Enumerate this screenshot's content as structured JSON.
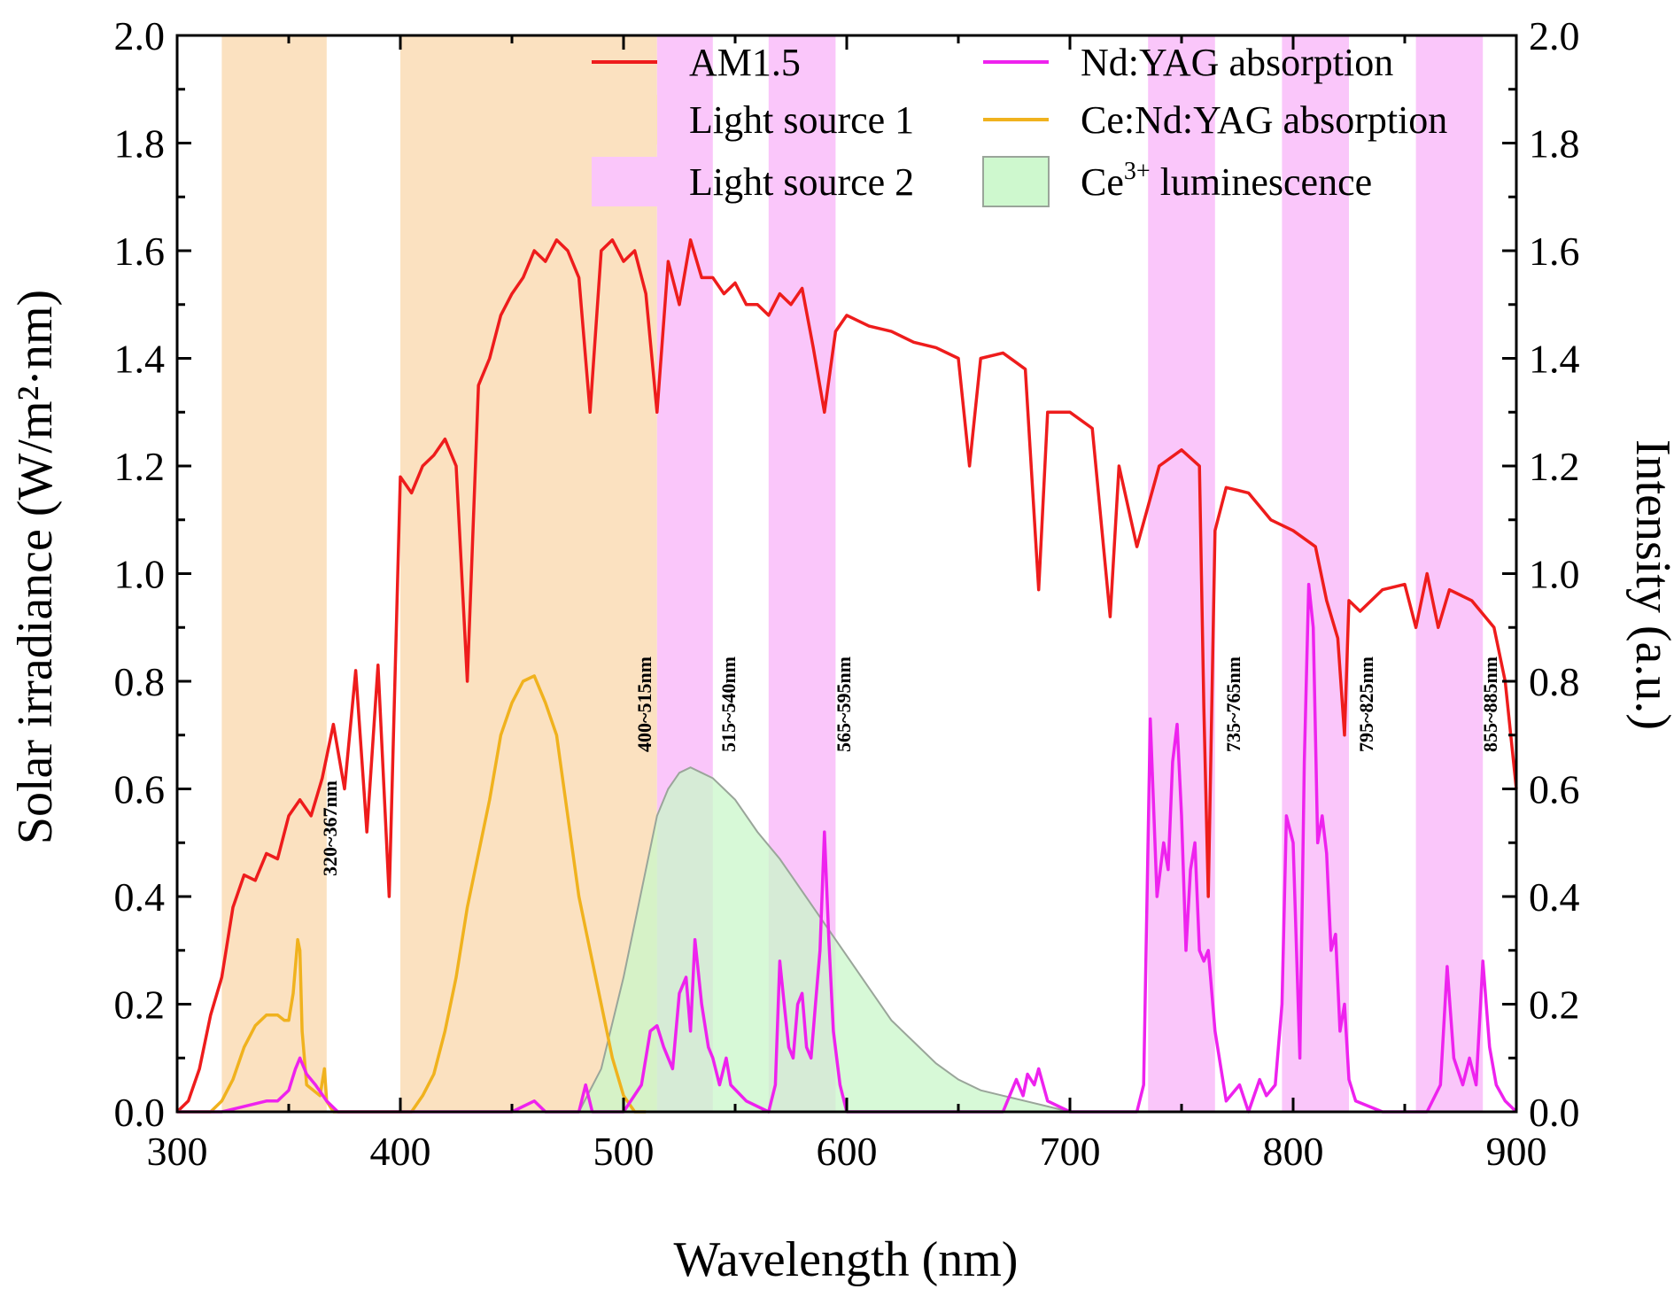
{
  "chart_data": {
    "type": "line",
    "title": "",
    "xlabel": "Wavelength (nm)",
    "ylabel_left": "Solar irradiance (W/m²·nm)",
    "ylabel_right": "Intensity (a.u.)",
    "xlim": [
      300,
      900
    ],
    "ylim_left": [
      0,
      2.0
    ],
    "ylim_right": [
      0,
      2.0
    ],
    "x_ticks": [
      "300",
      "400",
      "500",
      "600",
      "700",
      "800",
      "900"
    ],
    "y_ticks": [
      "0.0",
      "0.2",
      "0.4",
      "0.6",
      "0.8",
      "1.0",
      "1.2",
      "1.4",
      "1.6",
      "1.8",
      "2.0"
    ],
    "grid": false,
    "legend_position": "top",
    "legend": [
      {
        "label": "AM1.5",
        "kind": "line",
        "color": "#ee1c1c"
      },
      {
        "label": "Nd:YAG absorption",
        "kind": "line",
        "color": "#ee22ee"
      },
      {
        "label": "Light source 1",
        "kind": "patch",
        "color": "#fbe1c0"
      },
      {
        "label": "Ce:Nd:YAG absorption",
        "kind": "line",
        "color": "#f0b21e"
      },
      {
        "label": "Light source 2",
        "kind": "patch",
        "color": "#fac6fa"
      },
      {
        "label": "Ce",
        "superscript": "3+",
        "suffix": " luminescence",
        "kind": "patch",
        "color": "#c9f7c9"
      }
    ],
    "bands": [
      {
        "label": "320~367nm",
        "from": 320,
        "to": 367,
        "source": "Light source 1"
      },
      {
        "label": "400~515nm",
        "from": 400,
        "to": 515,
        "source": "Light source 1"
      },
      {
        "label": "515~540nm",
        "from": 515,
        "to": 540,
        "source": "Light source 2"
      },
      {
        "label": "565~595nm",
        "from": 565,
        "to": 595,
        "source": "Light source 2"
      },
      {
        "label": "735~765nm",
        "from": 735,
        "to": 765,
        "source": "Light source 2"
      },
      {
        "label": "795~825nm",
        "from": 795,
        "to": 825,
        "source": "Light source 2"
      },
      {
        "label": "855~885nm",
        "from": 855,
        "to": 885,
        "source": "Light source 2"
      }
    ],
    "series": [
      {
        "name": "AM1.5",
        "color": "#ee1c1c",
        "x": [
          300,
          305,
          310,
          315,
          320,
          325,
          330,
          335,
          340,
          345,
          350,
          355,
          360,
          365,
          370,
          375,
          380,
          385,
          390,
          395,
          400,
          405,
          410,
          415,
          420,
          425,
          430,
          435,
          440,
          445,
          450,
          455,
          460,
          465,
          470,
          475,
          480,
          485,
          490,
          495,
          500,
          505,
          510,
          515,
          520,
          525,
          530,
          535,
          540,
          545,
          550,
          555,
          560,
          565,
          570,
          575,
          580,
          585,
          590,
          595,
          600,
          610,
          620,
          630,
          640,
          650,
          655,
          660,
          670,
          680,
          686,
          690,
          700,
          710,
          718,
          722,
          730,
          740,
          750,
          758,
          760,
          762,
          765,
          770,
          780,
          790,
          800,
          810,
          815,
          820,
          823,
          825,
          830,
          840,
          850,
          855,
          860,
          865,
          870,
          880,
          890,
          895,
          900
        ],
        "y": [
          0.0,
          0.02,
          0.08,
          0.18,
          0.25,
          0.38,
          0.44,
          0.43,
          0.48,
          0.47,
          0.55,
          0.58,
          0.55,
          0.62,
          0.72,
          0.6,
          0.82,
          0.52,
          0.83,
          0.4,
          1.18,
          1.15,
          1.2,
          1.22,
          1.25,
          1.2,
          0.8,
          1.35,
          1.4,
          1.48,
          1.52,
          1.55,
          1.6,
          1.58,
          1.62,
          1.6,
          1.55,
          1.3,
          1.6,
          1.62,
          1.58,
          1.6,
          1.52,
          1.3,
          1.58,
          1.5,
          1.62,
          1.55,
          1.55,
          1.52,
          1.54,
          1.5,
          1.5,
          1.48,
          1.52,
          1.5,
          1.53,
          1.42,
          1.3,
          1.45,
          1.48,
          1.46,
          1.45,
          1.43,
          1.42,
          1.4,
          1.2,
          1.4,
          1.41,
          1.38,
          0.97,
          1.3,
          1.3,
          1.27,
          0.92,
          1.2,
          1.05,
          1.2,
          1.23,
          1.2,
          0.75,
          0.4,
          1.08,
          1.16,
          1.15,
          1.1,
          1.08,
          1.05,
          0.95,
          0.88,
          0.7,
          0.95,
          0.93,
          0.97,
          0.98,
          0.9,
          1.0,
          0.9,
          0.97,
          0.95,
          0.9,
          0.8,
          0.6
        ]
      },
      {
        "name": "Nd:YAG absorption",
        "color": "#ee22ee",
        "x": [
          300,
          320,
          330,
          340,
          345,
          350,
          353,
          355,
          358,
          362,
          367,
          372,
          380,
          400,
          440,
          450,
          460,
          465,
          480,
          483,
          486,
          500,
          508,
          512,
          515,
          518,
          520,
          522,
          525,
          528,
          530,
          532,
          535,
          538,
          540,
          543,
          546,
          548,
          555,
          565,
          568,
          570,
          572,
          574,
          576,
          578,
          580,
          582,
          584,
          586,
          588,
          590,
          592,
          594,
          597,
          600,
          610,
          620,
          640,
          660,
          670,
          676,
          679,
          681,
          684,
          686,
          690,
          700,
          720,
          730,
          733,
          736,
          739,
          742,
          744,
          746,
          748,
          750,
          752,
          754,
          756,
          758,
          760,
          762,
          765,
          770,
          776,
          780,
          785,
          788,
          792,
          795,
          797,
          800,
          803,
          805,
          807,
          809,
          811,
          813,
          815,
          817,
          819,
          821,
          823,
          825,
          828,
          840,
          855,
          860,
          866,
          869,
          872,
          876,
          879,
          882,
          885,
          888,
          891,
          895,
          900
        ],
        "y": [
          0.0,
          0.0,
          0.01,
          0.02,
          0.02,
          0.04,
          0.08,
          0.1,
          0.07,
          0.05,
          0.02,
          0.0,
          0.0,
          0.0,
          0.0,
          0.0,
          0.02,
          0.0,
          0.0,
          0.05,
          0.0,
          0.0,
          0.05,
          0.15,
          0.16,
          0.12,
          0.1,
          0.08,
          0.22,
          0.25,
          0.15,
          0.32,
          0.2,
          0.12,
          0.1,
          0.05,
          0.1,
          0.05,
          0.02,
          0.0,
          0.05,
          0.28,
          0.2,
          0.12,
          0.1,
          0.2,
          0.22,
          0.12,
          0.1,
          0.2,
          0.3,
          0.52,
          0.32,
          0.15,
          0.05,
          0.0,
          0.0,
          0.0,
          0.0,
          0.0,
          0.0,
          0.06,
          0.03,
          0.07,
          0.05,
          0.08,
          0.02,
          0.0,
          0.0,
          0.0,
          0.05,
          0.73,
          0.4,
          0.5,
          0.45,
          0.65,
          0.72,
          0.55,
          0.3,
          0.45,
          0.5,
          0.3,
          0.28,
          0.3,
          0.15,
          0.02,
          0.05,
          0.0,
          0.06,
          0.03,
          0.05,
          0.2,
          0.55,
          0.5,
          0.1,
          0.65,
          0.98,
          0.9,
          0.5,
          0.55,
          0.48,
          0.3,
          0.33,
          0.15,
          0.2,
          0.06,
          0.02,
          0.0,
          0.0,
          0.0,
          0.05,
          0.27,
          0.1,
          0.05,
          0.1,
          0.05,
          0.28,
          0.12,
          0.05,
          0.02,
          0.0
        ]
      },
      {
        "name": "Ce:Nd:YAG absorption",
        "color": "#f0b21e",
        "x": [
          300,
          315,
          320,
          325,
          330,
          335,
          340,
          345,
          348,
          350,
          352,
          354,
          355,
          356,
          358,
          361,
          364,
          366,
          367,
          370,
          400,
          405,
          410,
          415,
          420,
          425,
          430,
          435,
          440,
          445,
          450,
          455,
          460,
          465,
          470,
          475,
          480,
          485,
          490,
          495,
          500,
          505,
          510
        ],
        "y": [
          0.0,
          0.0,
          0.02,
          0.06,
          0.12,
          0.16,
          0.18,
          0.18,
          0.17,
          0.17,
          0.22,
          0.32,
          0.3,
          0.15,
          0.05,
          0.04,
          0.03,
          0.08,
          0.02,
          0.0,
          0.0,
          0.0,
          0.03,
          0.07,
          0.15,
          0.25,
          0.38,
          0.48,
          0.58,
          0.7,
          0.76,
          0.8,
          0.81,
          0.76,
          0.7,
          0.55,
          0.4,
          0.3,
          0.2,
          0.1,
          0.03,
          0.0,
          0.0
        ]
      },
      {
        "name": "Ce3+ luminescence",
        "color": "#c9f7c9",
        "x": [
          480,
          490,
          500,
          505,
          510,
          515,
          520,
          525,
          530,
          535,
          540,
          545,
          550,
          560,
          570,
          580,
          590,
          600,
          610,
          620,
          630,
          640,
          650,
          660,
          670,
          680,
          690,
          700
        ],
        "y": [
          0.0,
          0.08,
          0.25,
          0.35,
          0.45,
          0.55,
          0.6,
          0.63,
          0.64,
          0.63,
          0.62,
          0.6,
          0.58,
          0.52,
          0.47,
          0.41,
          0.35,
          0.29,
          0.23,
          0.17,
          0.13,
          0.09,
          0.06,
          0.04,
          0.03,
          0.02,
          0.01,
          0.0
        ]
      }
    ]
  }
}
